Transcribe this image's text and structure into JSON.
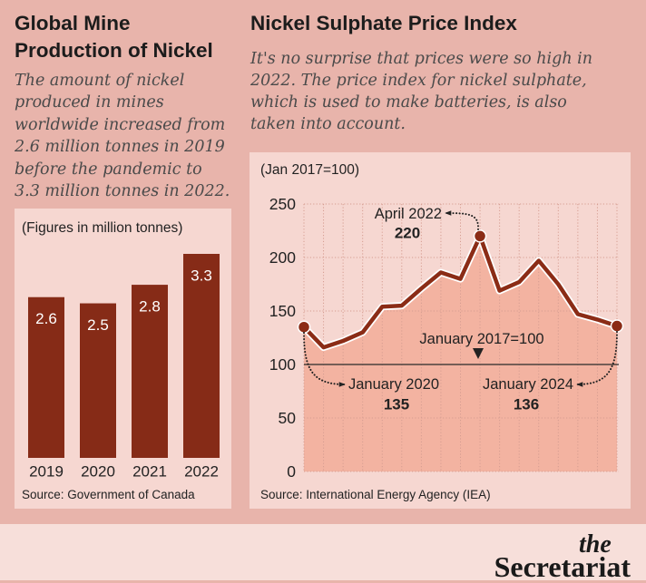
{
  "colors": {
    "background": "#e8b4ab",
    "panel": "#f6d7d1",
    "footer": "#f7dfda",
    "bar": "#862b17",
    "line": "#8b2c16",
    "area": "#f3b3a1",
    "text": "#1c1c1c",
    "description": "#4a4a4a"
  },
  "chart_data": [
    {
      "type": "bar",
      "title_lines": [
        "Global Mine",
        "Production of Nickel"
      ],
      "subtitle_lines": [
        "The amount of nickel",
        "produced in mines",
        "worldwide increased from",
        "2.6 million tonnes in 2019",
        "before the pandemic to",
        "3.3 million tonnes in 2022."
      ],
      "unit_note": "(Figures in million tonnes)",
      "categories": [
        "2019",
        "2020",
        "2021",
        "2022"
      ],
      "values": [
        2.6,
        2.5,
        2.8,
        3.3
      ],
      "source": "Source: Government of Canada",
      "grid": false,
      "legend": "none"
    },
    {
      "type": "area",
      "title": "Nickel Sulphate Price Index",
      "subtitle_lines": [
        "It's no surprise that prices were so high in",
        "2022. The price index for nickel sulphate,",
        "which is used to make batteries, is also",
        "taken into account."
      ],
      "unit_note": "(Jan 2017=100)",
      "ylim": [
        0,
        250
      ],
      "y_ticks": [
        0,
        50,
        100,
        150,
        200,
        250
      ],
      "values": [
        135,
        116,
        122,
        130,
        154,
        155,
        171,
        186,
        180,
        220,
        169,
        177,
        197,
        175,
        147,
        142,
        136
      ],
      "reference_line": {
        "value": 100,
        "label": "January 2017=100"
      },
      "annotations": [
        {
          "label": "January 2020",
          "value": 135
        },
        {
          "label": "April 2022",
          "value": 220
        },
        {
          "label": "January 2024",
          "value": 136
        }
      ],
      "source": "Source: International Energy Agency (IEA)",
      "grid": true,
      "legend": "none"
    }
  ],
  "footer": {
    "logo_the": "the",
    "logo_name": "Secretariat"
  }
}
